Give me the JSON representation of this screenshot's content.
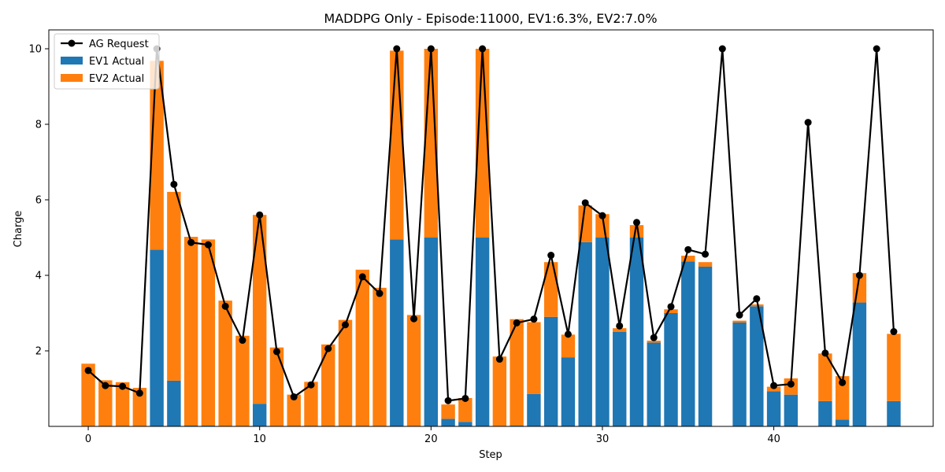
{
  "chart_data": {
    "type": "bar",
    "title": "MADDPG Only - Episode:11000, EV1:6.3%, EV2:7.0%",
    "xlabel": "Step",
    "ylabel": "Charge",
    "xlim": [
      -2.3,
      49.3
    ],
    "ylim": [
      0,
      10.5
    ],
    "x_ticks": [
      0,
      10,
      20,
      30,
      40
    ],
    "y_ticks": [
      2,
      4,
      6,
      8,
      10
    ],
    "legend_position": "top-left",
    "grid": false,
    "stacked": true,
    "x": [
      0,
      1,
      2,
      3,
      4,
      5,
      6,
      7,
      8,
      9,
      10,
      11,
      12,
      13,
      14,
      15,
      16,
      17,
      18,
      19,
      20,
      21,
      22,
      23,
      24,
      25,
      26,
      27,
      28,
      29,
      30,
      31,
      32,
      33,
      34,
      35,
      36,
      37,
      38,
      39,
      40,
      41,
      42,
      43,
      44,
      45,
      46,
      47
    ],
    "series": [
      {
        "name": "EV1 Actual",
        "kind": "bar",
        "color": "#1f77b4",
        "values": [
          0,
          0,
          0,
          0,
          4.68,
          1.21,
          0.02,
          0.02,
          0,
          0,
          0.6,
          0,
          0,
          0,
          0,
          0,
          0,
          0,
          4.95,
          0,
          5.0,
          0.2,
          0.12,
          5.0,
          0,
          0.02,
          0.86,
          2.9,
          1.83,
          4.88,
          5.0,
          2.5,
          5.0,
          2.22,
          3.0,
          4.37,
          4.23,
          0,
          2.75,
          3.18,
          0.93,
          0.84,
          0,
          0.67,
          0.18,
          3.28,
          0,
          0.67
        ]
      },
      {
        "name": "EV2 Actual",
        "kind": "bar",
        "color": "#ff7f0e",
        "values": [
          1.66,
          1.22,
          1.17,
          1.02,
          5.0,
          5.0,
          5.0,
          4.93,
          3.33,
          2.4,
          5.0,
          2.09,
          0.84,
          1.18,
          2.17,
          2.82,
          4.15,
          3.67,
          5.0,
          2.95,
          5.0,
          0.38,
          0.63,
          5.0,
          1.85,
          2.82,
          1.9,
          1.45,
          0.6,
          0.97,
          0.62,
          0.1,
          0.33,
          0.05,
          0.1,
          0.15,
          0.12,
          0,
          0.05,
          0.05,
          0.12,
          0.43,
          0,
          1.26,
          1.15,
          0.78,
          0,
          1.78
        ]
      },
      {
        "name": "AG Request",
        "kind": "line",
        "color": "#000000",
        "values": [
          1.48,
          1.08,
          1.06,
          0.88,
          10.0,
          6.41,
          4.87,
          4.81,
          3.18,
          2.28,
          5.6,
          1.98,
          0.78,
          1.1,
          2.06,
          2.69,
          3.96,
          3.52,
          10.0,
          2.85,
          10.0,
          0.68,
          0.74,
          10.0,
          1.78,
          2.74,
          2.84,
          4.53,
          2.44,
          5.92,
          5.58,
          2.66,
          5.4,
          2.35,
          3.17,
          4.68,
          4.56,
          10.0,
          2.95,
          3.38,
          1.08,
          1.12,
          8.05,
          1.94,
          1.16,
          4.0,
          10.0,
          2.51
        ]
      }
    ]
  }
}
